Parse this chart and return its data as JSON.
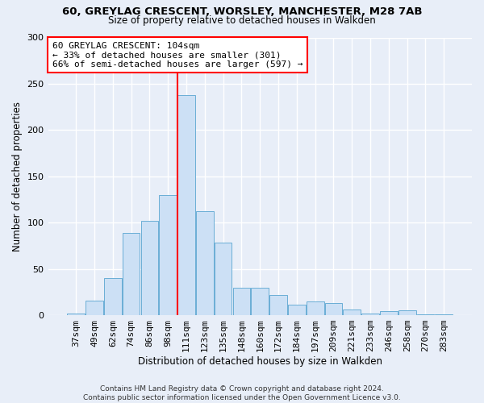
{
  "title1": "60, GREYLAG CRESCENT, WORSLEY, MANCHESTER, M28 7AB",
  "title2": "Size of property relative to detached houses in Walkden",
  "xlabel": "Distribution of detached houses by size in Walkden",
  "ylabel": "Number of detached properties",
  "footer": "Contains HM Land Registry data © Crown copyright and database right 2024.\nContains public sector information licensed under the Open Government Licence v3.0.",
  "categories": [
    "37sqm",
    "49sqm",
    "62sqm",
    "74sqm",
    "86sqm",
    "98sqm",
    "111sqm",
    "123sqm",
    "135sqm",
    "148sqm",
    "160sqm",
    "172sqm",
    "184sqm",
    "197sqm",
    "209sqm",
    "221sqm",
    "233sqm",
    "246sqm",
    "258sqm",
    "270sqm",
    "283sqm"
  ],
  "values": [
    2,
    16,
    40,
    89,
    102,
    130,
    238,
    112,
    78,
    30,
    30,
    22,
    11,
    15,
    13,
    6,
    2,
    4,
    5,
    1,
    1
  ],
  "bar_color": "#cce0f5",
  "bar_edge_color": "#6aaed6",
  "vline_x": 5.5,
  "vline_color": "red",
  "annotation_text": "60 GREYLAG CRESCENT: 104sqm\n← 33% of detached houses are smaller (301)\n66% of semi-detached houses are larger (597) →",
  "annotation_box_color": "white",
  "annotation_box_edge": "red",
  "ylim": [
    0,
    300
  ],
  "yticks": [
    0,
    50,
    100,
    150,
    200,
    250,
    300
  ],
  "background_color": "#e8eef8",
  "plot_bg_color": "#e8eef8",
  "grid_color": "white",
  "title1_fontsize": 9.5,
  "title2_fontsize": 8.5,
  "xlabel_fontsize": 8.5,
  "ylabel_fontsize": 8.5,
  "tick_fontsize": 8,
  "annotation_fontsize": 8,
  "footer_fontsize": 6.5
}
